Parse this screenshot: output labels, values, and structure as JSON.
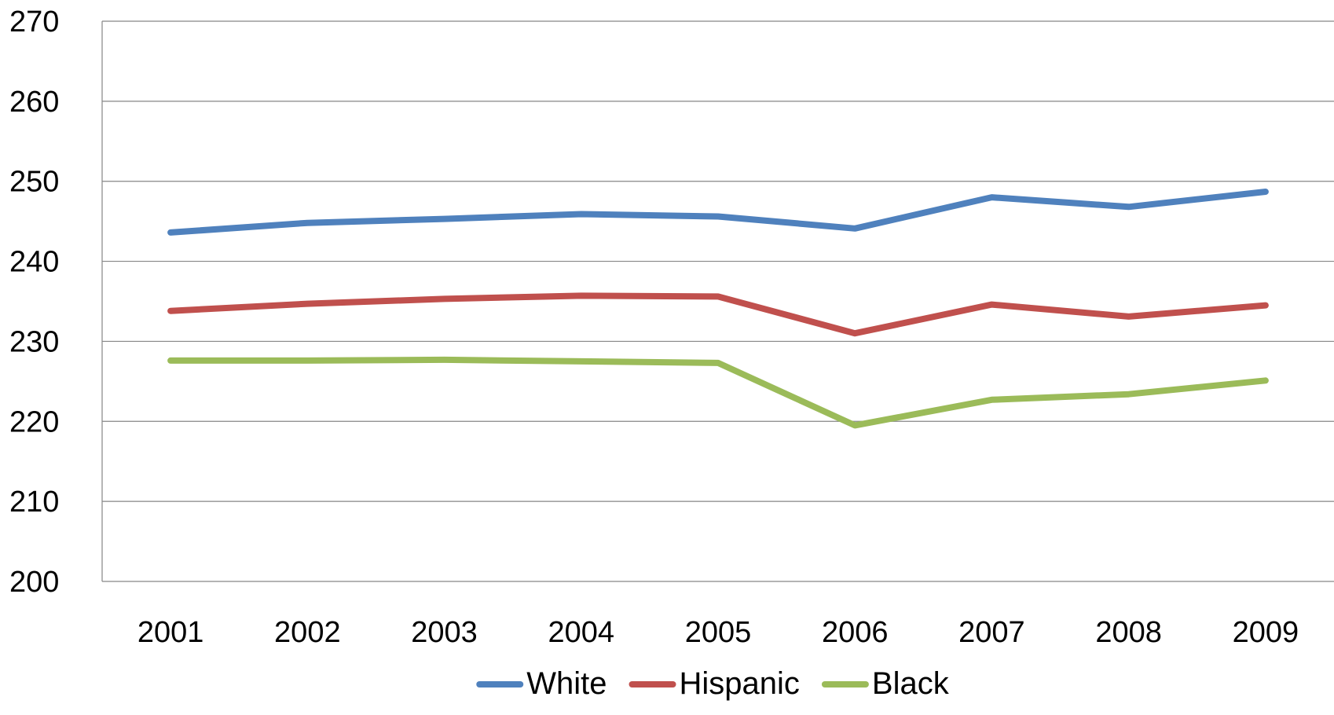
{
  "chart_data": {
    "type": "line",
    "categories": [
      "2001",
      "2002",
      "2003",
      "2004",
      "2005",
      "2006",
      "2007",
      "2008",
      "2009"
    ],
    "ylim": [
      200,
      270
    ],
    "yticks": [
      "200",
      "210",
      "220",
      "230",
      "240",
      "250",
      "260",
      "270"
    ],
    "grid": true,
    "legend_position": "bottom",
    "series": [
      {
        "name": "White",
        "color": "#4F81BD",
        "values": [
          243.6,
          244.8,
          245.3,
          245.9,
          245.6,
          244.1,
          248.0,
          246.8,
          248.7
        ]
      },
      {
        "name": "Hispanic",
        "color": "#C0504D",
        "values": [
          233.8,
          234.7,
          235.3,
          235.7,
          235.6,
          231.0,
          234.6,
          233.1,
          234.5
        ]
      },
      {
        "name": "Black",
        "color": "#9BBB59",
        "values": [
          227.6,
          227.6,
          227.7,
          227.5,
          227.3,
          219.5,
          222.7,
          223.4,
          225.1
        ]
      }
    ]
  }
}
